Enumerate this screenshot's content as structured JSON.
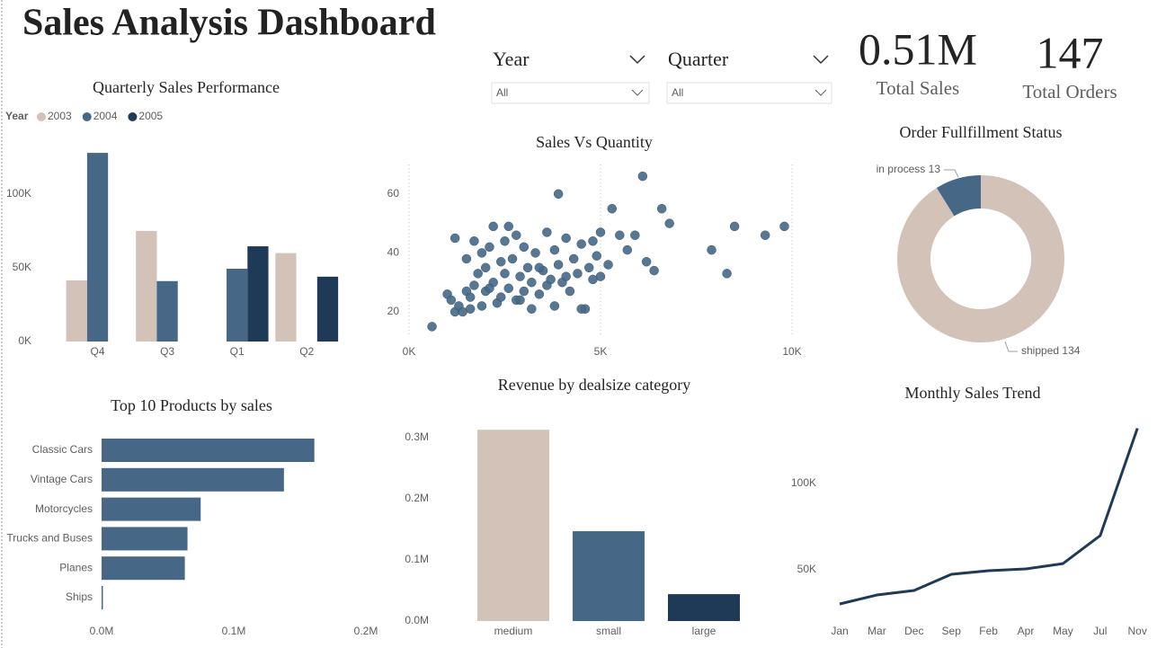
{
  "header": {
    "title": "Sales Analysis Dashboard"
  },
  "slicers": [
    {
      "label": "Year",
      "selection": "All"
    },
    {
      "label": "Quarter",
      "selection": "All"
    }
  ],
  "kpis": [
    {
      "value": 510000,
      "value_label": "0.51M",
      "label": "Total Sales"
    },
    {
      "value": 147,
      "label": "Total Orders"
    }
  ],
  "chart_data": [
    {
      "type": "grouped_bar",
      "title": "Quarterly Sales Performance",
      "legend_title": "Year",
      "categories": [
        "Q4",
        "Q3",
        "Q1",
        "Q2"
      ],
      "series": [
        {
          "name": "2003",
          "color": "#d3c2b8",
          "values": [
            41500,
            75000,
            null,
            60000
          ]
        },
        {
          "name": "2004",
          "color": "#466886",
          "values": [
            128000,
            41000,
            49400,
            null
          ]
        },
        {
          "name": "2005",
          "color": "#1e3a56",
          "values": [
            null,
            null,
            64600,
            44000
          ]
        }
      ],
      "ylim": [
        0,
        130000
      ],
      "yticks": [
        {
          "value": 0,
          "label": "0K"
        },
        {
          "value": 50000,
          "label": "50K"
        },
        {
          "value": 100000,
          "label": "100K"
        }
      ]
    },
    {
      "type": "scatter",
      "title": "Sales Vs Quantity",
      "color": "#466886",
      "x": [
        600,
        1000,
        1100,
        1200,
        1200,
        1300,
        1400,
        1500,
        1500,
        1600,
        1700,
        1700,
        1800,
        1900,
        1900,
        2000,
        2000,
        2100,
        2200,
        2200,
        2300,
        2400,
        2400,
        2500,
        2500,
        2600,
        2600,
        2700,
        2800,
        2800,
        2900,
        3000,
        3000,
        3100,
        3200,
        3200,
        3300,
        3400,
        3500,
        3600,
        3600,
        3700,
        3800,
        3800,
        3900,
        3900,
        4000,
        4100,
        4200,
        4300,
        4400,
        4500,
        4600,
        4700,
        4800,
        4900,
        5000,
        5000,
        5200,
        5300,
        5500,
        5700,
        5900,
        6100,
        6200,
        6400,
        6600,
        6800,
        7900,
        8300,
        8500,
        9300,
        9800,
        4500,
        3400,
        2900,
        1600,
        2100,
        4100,
        4800
      ],
      "values": [
        15,
        26,
        24,
        20,
        45,
        22,
        20,
        27,
        38,
        25,
        29,
        44,
        33,
        22,
        40,
        27,
        35,
        42,
        30,
        49,
        23,
        37,
        25,
        33,
        44,
        28,
        49,
        38,
        24,
        46,
        32,
        27,
        42,
        35,
        21,
        30,
        40,
        26,
        34,
        47,
        29,
        31,
        41,
        22,
        60,
        36,
        30,
        45,
        27,
        38,
        33,
        43,
        21,
        35,
        44,
        39,
        32,
        47,
        36,
        55,
        46,
        41,
        46,
        66,
        37,
        34,
        55,
        50,
        41,
        33,
        49,
        46,
        49,
        21,
        35,
        24,
        21,
        28,
        32,
        31
      ],
      "xlim": [
        0,
        10200
      ],
      "xticks": [
        {
          "value": 0,
          "label": "0K"
        },
        {
          "value": 5000,
          "label": "5K"
        },
        {
          "value": 10000,
          "label": "10K"
        }
      ],
      "ylim": [
        12,
        70
      ],
      "yticks": [
        20,
        40,
        60
      ],
      "grid": true
    },
    {
      "type": "donut",
      "title": "Order Fullfillment Status",
      "categories": [
        "shipped",
        "in process"
      ],
      "values": [
        134,
        13
      ],
      "colors": [
        "#d3c2b8",
        "#466886"
      ]
    },
    {
      "type": "hbar",
      "title": "Top 10 Products by sales",
      "categories": [
        "Classic Cars",
        "Vintage Cars",
        "Motorcycles",
        "Trucks and Buses",
        "Planes",
        "Ships"
      ],
      "values": [
        161000,
        138000,
        75000,
        65000,
        63000,
        1000
      ],
      "color": "#466886",
      "xlim": [
        0,
        200000
      ],
      "xticks": [
        {
          "value": 0,
          "label": "0.0M"
        },
        {
          "value": 100000,
          "label": "0.1M"
        },
        {
          "value": 200000,
          "label": "0.2M"
        }
      ]
    },
    {
      "type": "bar",
      "title": "Revenue by dealsize category",
      "categories": [
        "medium",
        "small",
        "large"
      ],
      "values": [
        313000,
        147000,
        44000
      ],
      "colors": [
        "#d3c2b8",
        "#466886",
        "#1e3a56"
      ],
      "ylim": [
        0,
        320000
      ],
      "yticks": [
        {
          "value": 0,
          "label": "0.0M"
        },
        {
          "value": 100000,
          "label": "0.1M"
        },
        {
          "value": 200000,
          "label": "0.2M"
        },
        {
          "value": 300000,
          "label": "0.3M"
        }
      ]
    },
    {
      "type": "line",
      "title": "Monthly Sales Trend",
      "categories": [
        "Jan",
        "Mar",
        "Dec",
        "Sep",
        "Feb",
        "Apr",
        "May",
        "Jul",
        "Nov"
      ],
      "values": [
        30200,
        35400,
        38000,
        47400,
        49500,
        50500,
        53600,
        69800,
        132000
      ],
      "color": "#1e3a56",
      "ylim": [
        20000,
        135000
      ],
      "yticks": [
        {
          "value": 50000,
          "label": "50K"
        },
        {
          "value": 100000,
          "label": "100K"
        }
      ]
    }
  ]
}
